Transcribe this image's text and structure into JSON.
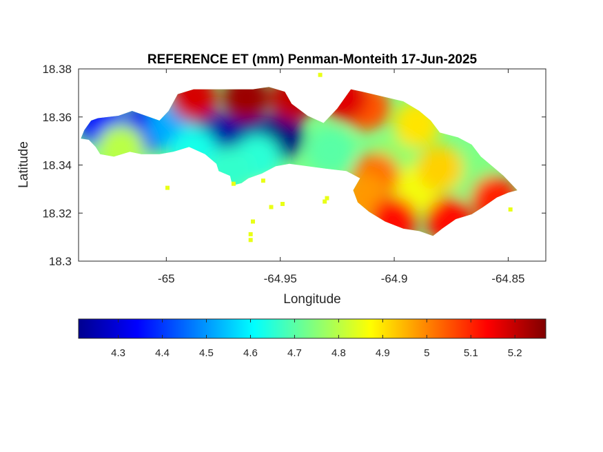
{
  "chart_data": {
    "type": "heatmap",
    "title": "REFERENCE ET (mm) Penman-Monteith 17-Jun-2025",
    "xlabel": "Longitude",
    "ylabel": "Latitude",
    "xlim": [
      -65.0385,
      -64.8335
    ],
    "ylim": [
      18.3,
      18.38
    ],
    "x_ticks": [
      -65,
      -64.95,
      -64.9,
      -64.85
    ],
    "x_tick_labels": [
      "-65",
      "-64.95",
      "-64.9",
      "-64.85"
    ],
    "y_ticks": [
      18.3,
      18.32,
      18.34,
      18.36,
      18.38
    ],
    "y_tick_labels": [
      "18.3",
      "18.32",
      "18.34",
      "18.36",
      "18.38"
    ],
    "colorbar": {
      "colormap": "jet",
      "range": [
        4.21,
        5.27
      ],
      "ticks": [
        4.3,
        4.4,
        4.5,
        4.6,
        4.7,
        4.8,
        4.9,
        5.0,
        5.1,
        5.2
      ],
      "tick_labels": [
        "4.3",
        "4.4",
        "4.5",
        "4.6",
        "4.7",
        "4.8",
        "4.9",
        "5",
        "5.1",
        "5.2"
      ],
      "location": "southoutside"
    },
    "island_outline_lonlat": [
      [
        -65.0375,
        18.351
      ],
      [
        -65.034,
        18.3505
      ],
      [
        -65.031,
        18.3475
      ],
      [
        -65.029,
        18.3445
      ],
      [
        -65.023,
        18.3435
      ],
      [
        -65.016,
        18.3455
      ],
      [
        -65.011,
        18.3445
      ],
      [
        -65.003,
        18.3445
      ],
      [
        -64.997,
        18.3455
      ],
      [
        -64.99,
        18.3475
      ],
      [
        -64.983,
        18.3445
      ],
      [
        -64.978,
        18.3405
      ],
      [
        -64.977,
        18.3375
      ],
      [
        -64.972,
        18.3355
      ],
      [
        -64.971,
        18.3315
      ],
      [
        -64.967,
        18.3325
      ],
      [
        -64.964,
        18.3345
      ],
      [
        -64.958,
        18.3365
      ],
      [
        -64.952,
        18.3395
      ],
      [
        -64.946,
        18.3405
      ],
      [
        -64.938,
        18.3395
      ],
      [
        -64.93,
        18.3385
      ],
      [
        -64.921,
        18.3375
      ],
      [
        -64.915,
        18.3345
      ],
      [
        -64.918,
        18.3295
      ],
      [
        -64.916,
        18.3245
      ],
      [
        -64.911,
        18.3205
      ],
      [
        -64.904,
        18.3165
      ],
      [
        -64.896,
        18.3135
      ],
      [
        -64.889,
        18.3125
      ],
      [
        -64.883,
        18.3105
      ],
      [
        -64.879,
        18.3135
      ],
      [
        -64.873,
        18.3175
      ],
      [
        -64.866,
        18.3195
      ],
      [
        -64.861,
        18.3225
      ],
      [
        -64.855,
        18.3265
      ],
      [
        -64.85,
        18.3285
      ],
      [
        -64.846,
        18.3295
      ],
      [
        -64.848,
        18.3315
      ],
      [
        -64.852,
        18.3355
      ],
      [
        -64.857,
        18.3395
      ],
      [
        -64.862,
        18.3435
      ],
      [
        -64.866,
        18.3485
      ],
      [
        -64.872,
        18.3515
      ],
      [
        -64.88,
        18.3535
      ],
      [
        -64.884,
        18.3585
      ],
      [
        -64.889,
        18.3625
      ],
      [
        -64.896,
        18.3665
      ],
      [
        -64.905,
        18.3685
      ],
      [
        -64.914,
        18.3705
      ],
      [
        -64.919,
        18.3715
      ],
      [
        -64.925,
        18.3635
      ],
      [
        -64.931,
        18.3575
      ],
      [
        -64.938,
        18.3605
      ],
      [
        -64.945,
        18.3655
      ],
      [
        -64.948,
        18.3705
      ],
      [
        -64.955,
        18.3725
      ],
      [
        -64.962,
        18.3715
      ],
      [
        -64.97,
        18.3715
      ],
      [
        -64.978,
        18.3715
      ],
      [
        -64.988,
        18.3715
      ],
      [
        -64.995,
        18.3695
      ],
      [
        -64.999,
        18.3625
      ],
      [
        -65.003,
        18.3585
      ],
      [
        -65.009,
        18.3605
      ],
      [
        -65.015,
        18.3625
      ],
      [
        -65.021,
        18.3605
      ],
      [
        -65.03,
        18.3595
      ],
      [
        -65.033,
        18.3585
      ],
      [
        -65.036,
        18.3545
      ],
      [
        -65.0375,
        18.351
      ]
    ],
    "islets_lonlat": [
      [
        -64.954,
        18.3225
      ],
      [
        -64.949,
        18.3238
      ],
      [
        -64.962,
        18.3165
      ],
      [
        -64.963,
        18.3112
      ],
      [
        -64.963,
        18.3088
      ],
      [
        -64.9295,
        18.3262
      ],
      [
        -64.9305,
        18.3248
      ],
      [
        -64.9575,
        18.3335
      ],
      [
        -64.9995,
        18.3305
      ],
      [
        -64.9705,
        18.3322
      ],
      [
        -64.849,
        18.3215
      ],
      [
        -64.9325,
        18.3775
      ]
    ],
    "value_centers": [
      {
        "lon": -64.95,
        "lat": 18.352,
        "value": 4.21
      },
      {
        "lon": -64.965,
        "lat": 18.352,
        "value": 4.24
      },
      {
        "lon": -64.979,
        "lat": 18.352,
        "value": 4.25
      },
      {
        "lon": -65.01,
        "lat": 18.355,
        "value": 4.33
      },
      {
        "lon": -65.028,
        "lat": 18.357,
        "value": 4.36
      },
      {
        "lon": -64.998,
        "lat": 18.356,
        "value": 4.52
      },
      {
        "lon": -64.988,
        "lat": 18.346,
        "value": 4.63
      },
      {
        "lon": -64.96,
        "lat": 18.343,
        "value": 4.65
      },
      {
        "lon": -64.928,
        "lat": 18.346,
        "value": 4.7
      },
      {
        "lon": -64.9,
        "lat": 18.342,
        "value": 4.76
      },
      {
        "lon": -64.878,
        "lat": 18.338,
        "value": 4.8
      },
      {
        "lon": -64.866,
        "lat": 18.336,
        "value": 4.74
      },
      {
        "lon": -64.89,
        "lat": 18.33,
        "value": 4.86
      },
      {
        "lon": -64.88,
        "lat": 18.3385,
        "value": 4.92
      },
      {
        "lon": -64.908,
        "lat": 18.3355,
        "value": 5.02
      },
      {
        "lon": -64.913,
        "lat": 18.327,
        "value": 4.98
      },
      {
        "lon": -64.9,
        "lat": 18.317,
        "value": 5.13
      },
      {
        "lon": -64.876,
        "lat": 18.317,
        "value": 5.12
      },
      {
        "lon": -64.856,
        "lat": 18.326,
        "value": 5.1
      },
      {
        "lon": -64.965,
        "lat": 18.368,
        "value": 5.24
      },
      {
        "lon": -64.988,
        "lat": 18.368,
        "value": 5.18
      },
      {
        "lon": -64.944,
        "lat": 18.368,
        "value": 5.2
      },
      {
        "lon": -64.912,
        "lat": 18.364,
        "value": 5.05
      },
      {
        "lon": -64.922,
        "lat": 18.368,
        "value": 5.17
      },
      {
        "lon": -64.89,
        "lat": 18.357,
        "value": 4.9
      },
      {
        "lon": -65.02,
        "lat": 18.347,
        "value": 4.8
      },
      {
        "lon": -64.972,
        "lat": 18.338,
        "value": 4.66
      },
      {
        "lon": -64.962,
        "lat": 18.313,
        "value": 4.95
      },
      {
        "lon": -64.954,
        "lat": 18.3225,
        "value": 4.85
      }
    ]
  }
}
